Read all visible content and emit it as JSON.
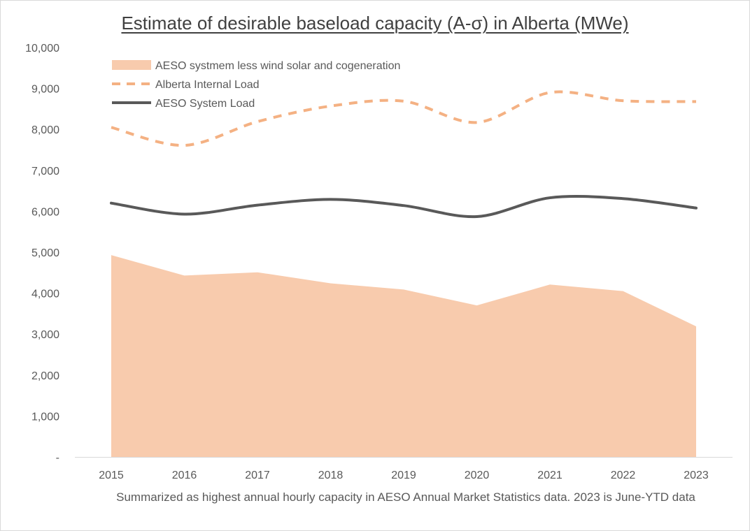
{
  "chart_data": {
    "type": "area",
    "title": "Estimate of desirable baseload capacity (A-σ) in Alberta (MWe)",
    "caption": "Summarized as highest annual hourly capacity in AESO Annual Market Statistics data. 2023 is June-YTD data",
    "categories": [
      "2015",
      "2016",
      "2017",
      "2018",
      "2019",
      "2020",
      "2021",
      "2022",
      "2023"
    ],
    "ylim": [
      0,
      10000
    ],
    "yticks": [
      {
        "value": 10000,
        "label": "10,000"
      },
      {
        "value": 9000,
        "label": "9,000"
      },
      {
        "value": 8000,
        "label": "8,000"
      },
      {
        "value": 7000,
        "label": "7,000"
      },
      {
        "value": 6000,
        "label": "6,000"
      },
      {
        "value": 5000,
        "label": "5,000"
      },
      {
        "value": 4000,
        "label": "4,000"
      },
      {
        "value": 3000,
        "label": "3,000"
      },
      {
        "value": 2000,
        "label": "2,000"
      },
      {
        "value": 1000,
        "label": "1,000"
      },
      {
        "value": 0,
        "label": "-"
      }
    ],
    "grid": false,
    "legend_position": "top-left",
    "series": [
      {
        "name": "AESO systmem less wind solar and cogeneration",
        "style": "area",
        "color": "#f8cbad",
        "values": [
          4930,
          4430,
          4510,
          4240,
          4090,
          3700,
          4210,
          4050,
          3190
        ]
      },
      {
        "name": "Alberta Internal Load",
        "style": "dashed-line",
        "color": "#f4b183",
        "values": [
          8050,
          7610,
          8190,
          8570,
          8690,
          8170,
          8900,
          8700,
          8680
        ]
      },
      {
        "name": "AESO System Load",
        "style": "solid-line",
        "color": "#595959",
        "values": [
          6200,
          5930,
          6150,
          6290,
          6140,
          5870,
          6330,
          6310,
          6080
        ]
      }
    ]
  }
}
